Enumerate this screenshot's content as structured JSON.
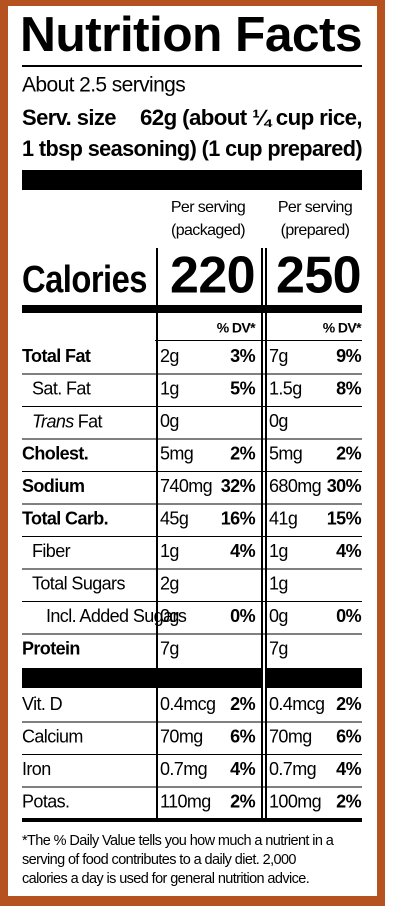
{
  "title": "Nutrition Facts",
  "servings": "About 2.5 servings",
  "serving_size": {
    "label": "Serv. size",
    "line1": "62g (about ¼ cup rice,",
    "line2": "1 tbsp seasoning) (1 cup prepared)"
  },
  "calories_label": "Calories",
  "dv_header": "% DV*",
  "columns": [
    {
      "header_line1": "Per serving",
      "header_line2": "(packaged)",
      "calories": 220
    },
    {
      "header_line1": "Per serving",
      "header_line2": "(prepared)",
      "calories": 250
    }
  ],
  "nutrients": [
    {
      "name": "Total Fat",
      "bold": true,
      "indent": 0,
      "cells": [
        [
          "2g",
          "3%"
        ],
        [
          "7g",
          "9%"
        ]
      ]
    },
    {
      "name": "Sat. Fat",
      "bold": false,
      "indent": 1,
      "cells": [
        [
          "1g",
          "5%"
        ],
        [
          "1.5g",
          "8%"
        ]
      ]
    },
    {
      "name_italic": "Trans",
      "name": "Fat",
      "bold": false,
      "indent": 1,
      "cells": [
        [
          "0g",
          null
        ],
        [
          "0g",
          null
        ]
      ]
    },
    {
      "name": "Cholest.",
      "bold": true,
      "indent": 0,
      "cells": [
        [
          "5mg",
          "2%"
        ],
        [
          "5mg",
          "2%"
        ]
      ]
    },
    {
      "name": "Sodium",
      "bold": true,
      "indent": 0,
      "cells": [
        [
          "740mg",
          "32%"
        ],
        [
          "680mg",
          "30%"
        ]
      ]
    },
    {
      "name": "Total Carb.",
      "bold": true,
      "indent": 0,
      "cells": [
        [
          "45g",
          "16%"
        ],
        [
          "41g",
          "15%"
        ]
      ]
    },
    {
      "name": "Fiber",
      "bold": false,
      "indent": 1,
      "cells": [
        [
          "1g",
          "4%"
        ],
        [
          "1g",
          "4%"
        ]
      ]
    },
    {
      "name": "Total Sugars",
      "bold": false,
      "indent": 1,
      "cells": [
        [
          "2g",
          null
        ],
        [
          "1g",
          null
        ]
      ]
    },
    {
      "name": "Incl. Added Sugars",
      "bold": false,
      "indent": 2,
      "cells": [
        [
          "0g",
          "0%"
        ],
        [
          "0g",
          "0%"
        ]
      ]
    },
    {
      "name": "Protein",
      "bold": true,
      "indent": 0,
      "cells": [
        [
          "7g",
          null
        ],
        [
          "7g",
          null
        ]
      ]
    }
  ],
  "vitamins": [
    {
      "name": "Vit. D",
      "cells": [
        [
          "0.4mcg",
          "2%"
        ],
        [
          "0.4mcg",
          "2%"
        ]
      ]
    },
    {
      "name": "Calcium",
      "cells": [
        [
          "70mg",
          "6%"
        ],
        [
          "70mg",
          "6%"
        ]
      ]
    },
    {
      "name": "Iron",
      "cells": [
        [
          "0.7mg",
          "4%"
        ],
        [
          "0.7mg",
          "4%"
        ]
      ]
    },
    {
      "name": "Potas.",
      "cells": [
        [
          "110mg",
          "2%"
        ],
        [
          "100mg",
          "2%"
        ]
      ]
    }
  ],
  "footnote": [
    "*The % Daily Value tells you how much a nutrient in a",
    "serving of food contributes to a daily diet. 2,000",
    "calories a day is used for general nutrition advice."
  ]
}
